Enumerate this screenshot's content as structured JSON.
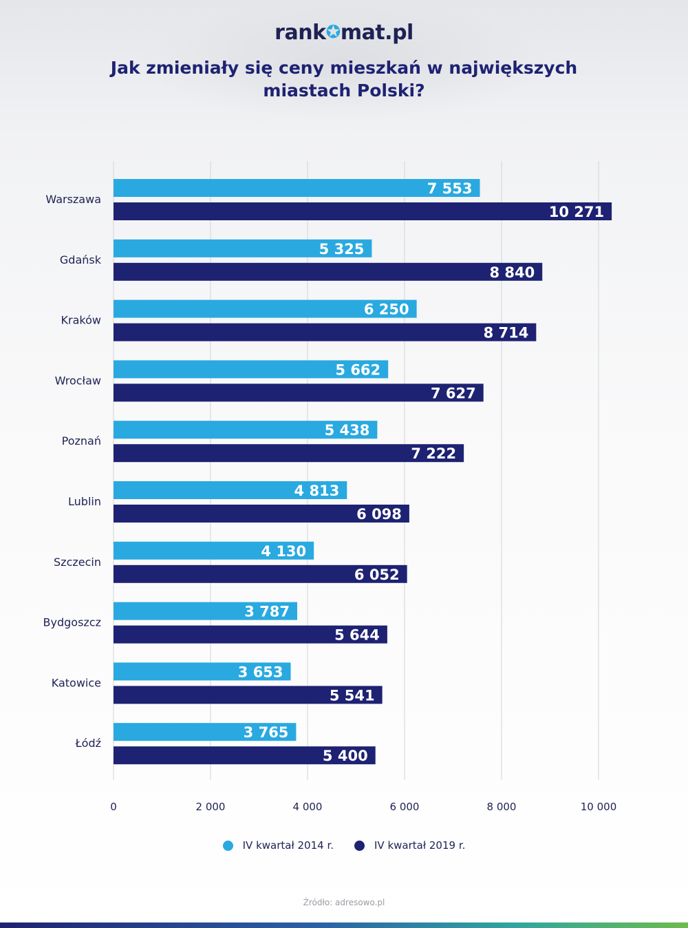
{
  "logo": {
    "left": "rank",
    "star": "✪",
    "right": "mat.pl"
  },
  "title": {
    "line1": "Jak zmieniały się ceny mieszkań w największych",
    "line2": "miastach Polski?"
  },
  "source": "Źródło: adresowo.pl",
  "colors": {
    "series1": "#29a9e0",
    "series2": "#1e2272",
    "grid": "#d9dadd",
    "text": "#1e2153"
  },
  "chart_data": {
    "type": "bar",
    "orientation": "horizontal",
    "categories": [
      "Warszawa",
      "Gdańsk",
      "Kraków",
      "Wrocław",
      "Poznań",
      "Lublin",
      "Szczecin",
      "Bydgoszcz",
      "Katowice",
      "Łódź"
    ],
    "series": [
      {
        "name": "IV kwartał 2014 r.",
        "values": [
          7553,
          5325,
          6250,
          5662,
          5438,
          4813,
          4130,
          3787,
          3653,
          3765
        ],
        "labels": [
          "7 553",
          "5 325",
          "6 250",
          "5 662",
          "5 438",
          "4 813",
          "4 130",
          "3 787",
          "3 653",
          "3 765"
        ]
      },
      {
        "name": "IV kwartał 2019 r.",
        "values": [
          10271,
          8840,
          8714,
          7627,
          7222,
          6098,
          6052,
          5644,
          5541,
          5400
        ],
        "labels": [
          "10 271",
          "8 840",
          "8 714",
          "7 627",
          "7 222",
          "6 098",
          "6 052",
          "5 644",
          "5 541",
          "5 400"
        ]
      }
    ],
    "xlim": [
      0,
      10000
    ],
    "ticks": [
      0,
      2000,
      4000,
      6000,
      8000,
      10000
    ],
    "tick_labels": [
      "0",
      "2 000",
      "4 000",
      "6 000",
      "8 000",
      "10 000"
    ],
    "grid": true,
    "legend_position": "bottom"
  }
}
